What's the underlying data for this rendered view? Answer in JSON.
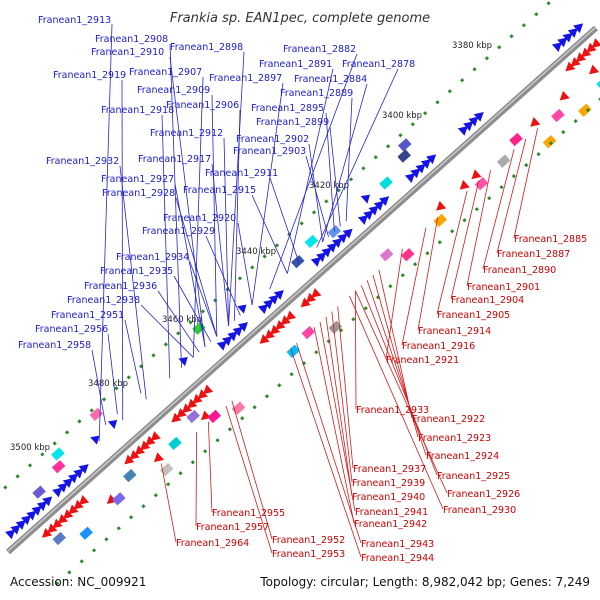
{
  "title": "Frankia sp. EAN1pec, complete genome",
  "footer": {
    "accession": "Accession: NC_009921",
    "topology": "Topology: circular; Length: 8,982,042 bp; Genes: 7,249"
  },
  "kbp_labels": [
    "3380 kbp",
    "3400 kbp",
    "3420 kbp",
    "3440 kbp",
    "3460 kbp",
    "3480 kbp",
    "3500 kbp"
  ],
  "upper_genes": [
    "Franean1_2913",
    "Franean1_2908",
    "Franean1_2910",
    "Franean1_2898",
    "Franean1_2882",
    "Franean1_2891",
    "Franean1_2878",
    "Franean1_2919",
    "Franean1_2907",
    "Franean1_2897",
    "Franean1_2884",
    "Franean1_2909",
    "Franean1_2889",
    "Franean1_2918",
    "Franean1_2906",
    "Franean1_2895",
    "Franean1_2899",
    "Franean1_2912",
    "Franean1_2902",
    "Franean1_2903",
    "Franean1_2932",
    "Franean1_2917",
    "Franean1_2911",
    "Franean1_2927",
    "Franean1_2928",
    "Franean1_2915",
    "Franean1_2920",
    "Franean1_2929",
    "Franean1_2934",
    "Franean1_2935",
    "Franean1_2936",
    "Franean1_2938",
    "Franean1_2951",
    "Franean1_2956",
    "Franean1_2958"
  ],
  "lower_genes": [
    "Franean1_2885",
    "Franean1_2887",
    "Franean1_2890",
    "Franean1_2901",
    "Franean1_2904",
    "Franean1_2905",
    "Franean1_2914",
    "Franean1_2916",
    "Franean1_2921",
    "Franean1_2933",
    "Franean1_2922",
    "Franean1_2923",
    "Franean1_2924",
    "Franean1_2937",
    "Franean1_2925",
    "Franean1_2939",
    "Franean1_2926",
    "Franean1_2940",
    "Franean1_2941",
    "Franean1_2930",
    "Franean1_2942",
    "Franean1_2955",
    "Franean1_2957",
    "Franean1_2964",
    "Franean1_2952",
    "Franean1_2943",
    "Franean1_2953",
    "Franean1_2944"
  ],
  "colors": {
    "upper_label": "#1c1cc8",
    "lower_label": "#c80000",
    "backbone": "#8a8a8a",
    "gc_ticks": "#2d8a2d"
  }
}
